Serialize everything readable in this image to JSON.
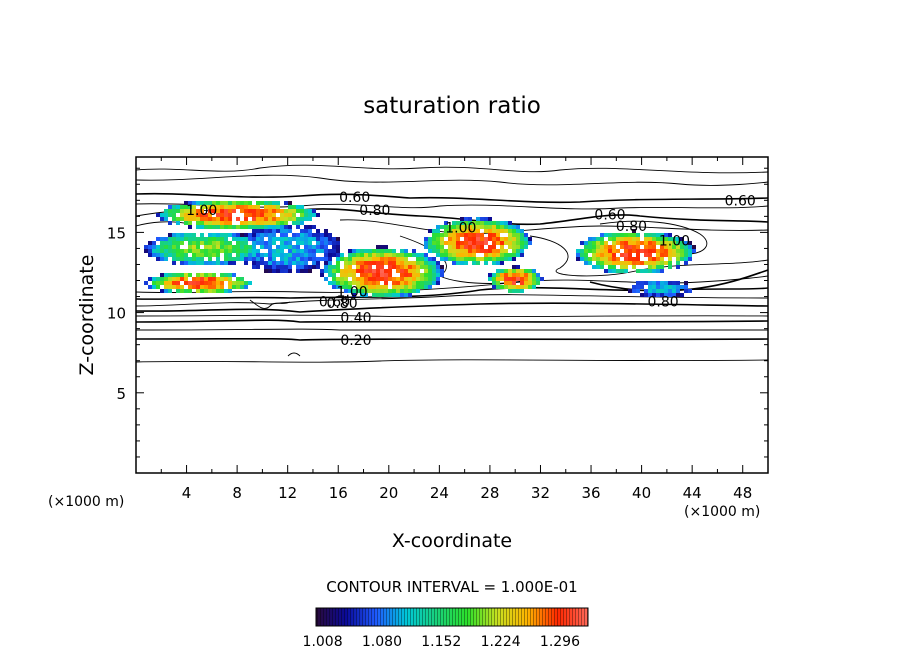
{
  "chart_data": {
    "type": "heatmap",
    "title": "saturation ratio",
    "xlabel": "X-coordinate",
    "ylabel": "Z-coordinate",
    "x_unit": "(×1000 m)",
    "z_unit": "(×1000 m)",
    "xlim": [
      0,
      50
    ],
    "ylim": [
      0,
      19.7
    ],
    "x_ticks": [
      4,
      8,
      12,
      16,
      20,
      24,
      28,
      32,
      36,
      40,
      44,
      48
    ],
    "y_ticks": [
      5,
      10,
      15
    ],
    "contour_interval_label": "CONTOUR INTERVAL = 1.000E-01",
    "colorbar": {
      "range": [
        1.0,
        1.33
      ],
      "tick_labels": [
        "1.008",
        "1.080",
        "1.152",
        "1.224",
        "1.296"
      ],
      "colors": [
        "#2a0a3a",
        "#0a0a9a",
        "#1f5cff",
        "#00c8d8",
        "#19d27a",
        "#2ce02c",
        "#c8e020",
        "#ffb400",
        "#ff2800",
        "#ff6a5a"
      ]
    },
    "contour_labels": [
      {
        "x": 17.3,
        "z": 17.2,
        "text": "0.60"
      },
      {
        "x": 18.9,
        "z": 16.4,
        "text": "0.80"
      },
      {
        "x": 5.2,
        "z": 16.4,
        "text": "1.00"
      },
      {
        "x": 25.7,
        "z": 15.3,
        "text": "1.00"
      },
      {
        "x": 37.5,
        "z": 16.1,
        "text": "0.60"
      },
      {
        "x": 39.2,
        "z": 15.4,
        "text": "0.80"
      },
      {
        "x": 42.6,
        "z": 14.5,
        "text": "1.00"
      },
      {
        "x": 47.8,
        "z": 17.0,
        "text": "0.60"
      },
      {
        "x": 17.1,
        "z": 11.3,
        "text": "1.00"
      },
      {
        "x": 15.7,
        "z": 10.7,
        "text": "0.60"
      },
      {
        "x": 16.3,
        "z": 10.6,
        "text": "0.80"
      },
      {
        "x": 17.4,
        "z": 9.7,
        "text": "0.40"
      },
      {
        "x": 17.4,
        "z": 8.3,
        "text": "0.20"
      },
      {
        "x": 41.7,
        "z": 10.7,
        "text": "0.80"
      }
    ],
    "supersaturated_regions": [
      {
        "x": [
          1,
          9
        ],
        "z": [
          11.2,
          12.5
        ],
        "peak": 1.3
      },
      {
        "x": [
          2,
          14
        ],
        "z": [
          15.2,
          17.0
        ],
        "peak": 1.3
      },
      {
        "x": [
          1,
          10
        ],
        "z": [
          13.0,
          15.0
        ],
        "peak": 1.2
      },
      {
        "x": [
          8,
          16
        ],
        "z": [
          12.5,
          15.5
        ],
        "peak": 1.1
      },
      {
        "x": [
          15,
          24
        ],
        "z": [
          11.0,
          14.0
        ],
        "peak": 1.3
      },
      {
        "x": [
          23,
          31
        ],
        "z": [
          13.0,
          15.8
        ],
        "peak": 1.3
      },
      {
        "x": [
          28,
          32
        ],
        "z": [
          11.3,
          12.8
        ],
        "peak": 1.3
      },
      {
        "x": [
          35,
          44
        ],
        "z": [
          12.5,
          15.0
        ],
        "peak": 1.3
      },
      {
        "x": [
          39,
          44
        ],
        "z": [
          11.0,
          12.0
        ],
        "peak": 1.1
      }
    ]
  }
}
